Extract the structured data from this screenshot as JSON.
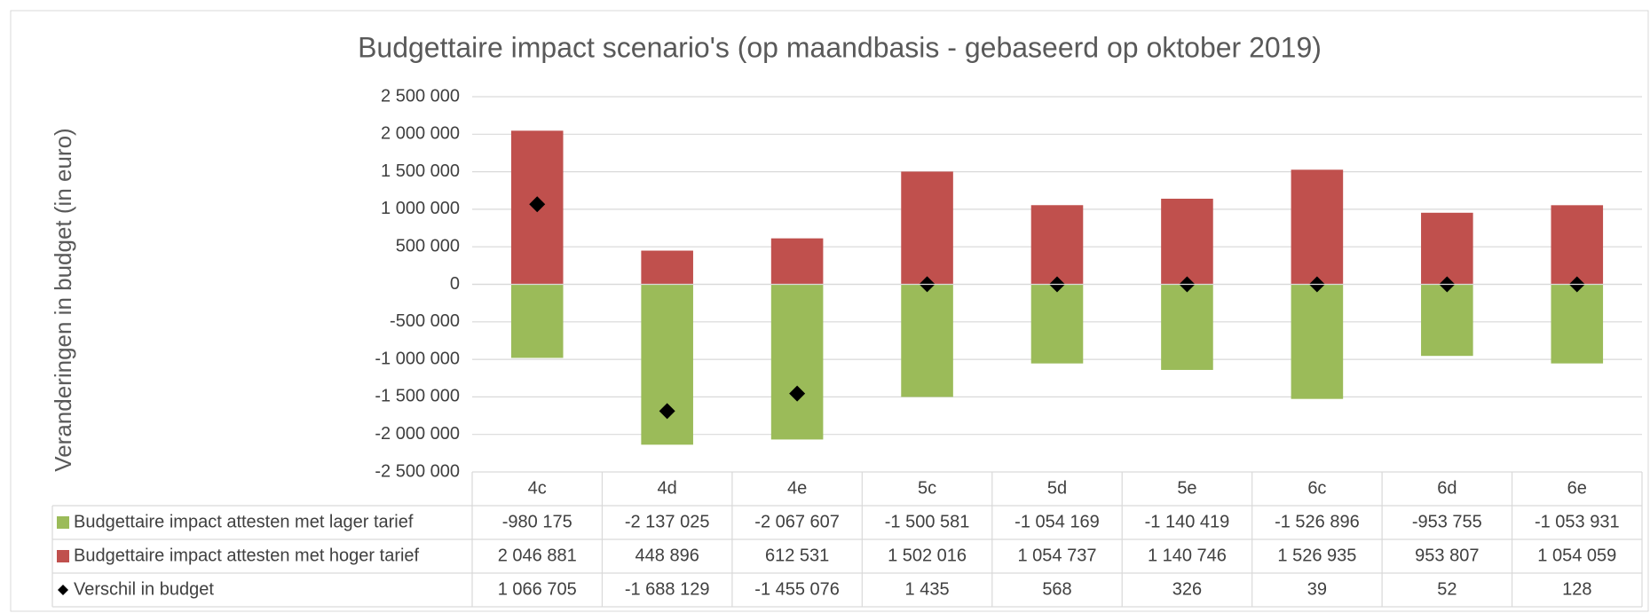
{
  "chart_data": {
    "type": "bar",
    "stacked": true,
    "title": "Budgettaire impact scenario's (op maandbasis - gebaseerd op oktober 2019)",
    "y_label": "Veranderingen in budget (in euro)",
    "categories": [
      "4c",
      "4d",
      "4e",
      "5c",
      "5d",
      "5e",
      "6c",
      "6d",
      "6e"
    ],
    "series": [
      {
        "name": "Budgettaire impact attesten met lager tarief",
        "color": "#9bbb59",
        "type": "bar",
        "values": [
          -980175,
          -2137025,
          -2067607,
          -1500581,
          -1054169,
          -1140419,
          -1526896,
          -953755,
          -1053931
        ],
        "value_labels": [
          "-980 175",
          "-2 137 025",
          "-2 067 607",
          "-1 500 581",
          "-1 054 169",
          "-1 140 419",
          "-1 526 896",
          "-953 755",
          "-1 053 931"
        ]
      },
      {
        "name": "Budgettaire impact attesten met hoger tarief",
        "color": "#c0504d",
        "type": "bar",
        "values": [
          2046881,
          448896,
          612531,
          1502016,
          1054737,
          1140746,
          1526935,
          953807,
          1054059
        ],
        "value_labels": [
          "2 046 881",
          "448 896",
          "612 531",
          "1 502 016",
          "1 054 737",
          "1 140 746",
          "1 526 935",
          "953 807",
          "1 054 059"
        ]
      },
      {
        "name": "Verschil in budget",
        "color": "#000000",
        "type": "scatter",
        "marker": "diamond",
        "values": [
          1066705,
          -1688129,
          -1455076,
          1435,
          568,
          326,
          39,
          52,
          128
        ],
        "value_labels": [
          "1 066 705",
          "-1 688 129",
          "-1 455 076",
          "1 435",
          "568",
          "326",
          "39",
          "52",
          "128"
        ]
      }
    ],
    "ylim": [
      -2500000,
      2500000
    ],
    "yticks": [
      {
        "value": -2500000,
        "label": "-2 500 000"
      },
      {
        "value": -2000000,
        "label": "-2 000 000"
      },
      {
        "value": -1500000,
        "label": "-1 500 000"
      },
      {
        "value": -1000000,
        "label": "-1 000 000"
      },
      {
        "value": -500000,
        "label": "-500 000"
      },
      0,
      {
        "value": 500000,
        "label": "500 000"
      },
      {
        "value": 1000000,
        "label": "1 000 000"
      },
      {
        "value": 1500000,
        "label": "1 500 000"
      },
      {
        "value": 2000000,
        "label": "2 000 000"
      },
      {
        "value": 2500000,
        "label": "2 500 000"
      }
    ],
    "grid": true,
    "data_table": true
  }
}
